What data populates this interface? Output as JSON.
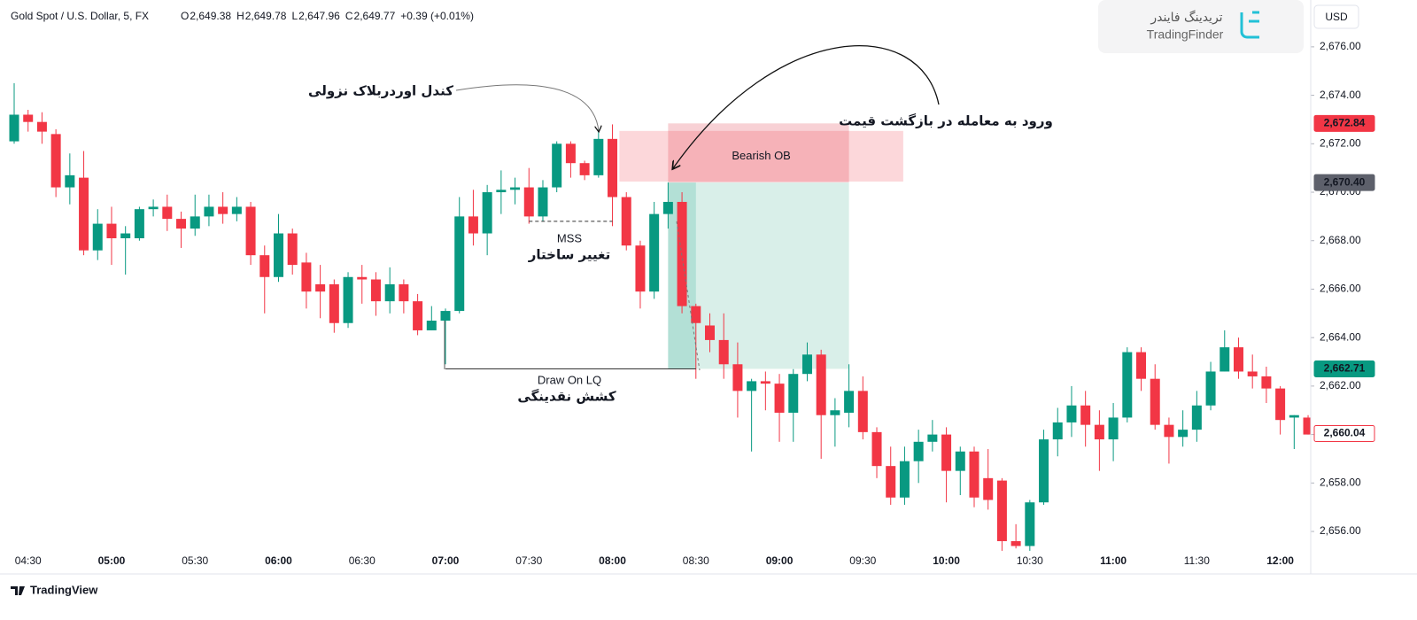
{
  "chart_data": {
    "type": "candlestick",
    "title": "Gold Spot / U.S. Dollar, 5, FX",
    "ohlc_header": [
      {
        "key": "O",
        "value": "2,649.38"
      },
      {
        "key": "H",
        "value": "2,649.78"
      },
      {
        "key": "L",
        "value": "2,647.96"
      },
      {
        "key": "C",
        "value": "2,649.77"
      }
    ],
    "change": "+0.39 (+0.01%)",
    "currency": "USD",
    "up_color": "#089981",
    "down_color": "#f23645",
    "categories": [
      null,
      "04:30",
      null,
      null,
      null,
      null,
      null,
      "05:00",
      null,
      null,
      null,
      null,
      null,
      "05:30",
      null,
      null,
      null,
      null,
      null,
      "06:00",
      null,
      null,
      null,
      null,
      null,
      "06:30",
      null,
      null,
      null,
      null,
      null,
      "07:00",
      null,
      null,
      null,
      null,
      null,
      "07:30",
      null,
      null,
      null,
      null,
      null,
      "08:00",
      null,
      null,
      null,
      null,
      null,
      "08:30",
      null,
      null,
      null,
      null,
      null,
      "09:00",
      null,
      null,
      null,
      null,
      null,
      "09:30",
      null,
      null,
      null,
      null,
      null,
      "10:00",
      null,
      null,
      null,
      null,
      null,
      "10:30",
      null,
      null,
      null,
      null,
      null,
      "11:00",
      null,
      null,
      null,
      null,
      null,
      "11:30",
      null,
      null,
      null,
      null,
      null,
      "12:00",
      null,
      null
    ],
    "open": [
      2672.1,
      2673.2,
      2672.9,
      2672.4,
      2670.2,
      2670.6,
      2667.6,
      2668.7,
      2668.1,
      2668.1,
      2669.3,
      2669.4,
      2668.9,
      2668.5,
      2669.0,
      2669.4,
      2669.1,
      2669.4,
      2667.4,
      2666.5,
      2668.3,
      2667.1,
      2666.2,
      2666.2,
      2664.6,
      2666.5,
      2666.4,
      2665.5,
      2666.2,
      2665.5,
      2664.3,
      2664.7,
      2665.1,
      2669.0,
      2668.3,
      2670.0,
      2670.1,
      2670.2,
      2669.0,
      2670.2,
      2672.0,
      2671.2,
      2670.7,
      2672.2,
      2669.8,
      2667.8,
      2665.9,
      2669.1,
      2669.6,
      2665.3,
      2664.5,
      2663.9,
      2662.9,
      2661.8,
      2662.2,
      2662.1,
      2660.9,
      2662.5,
      2663.3,
      2660.8,
      2660.9,
      2661.8,
      2660.1,
      2658.7,
      2657.4,
      2658.9,
      2659.7,
      2660.0,
      2658.5,
      2659.3,
      2658.2,
      2658.1,
      2655.6,
      2655.4,
      2657.2,
      2659.8,
      2660.5,
      2661.2,
      2660.4,
      2659.8,
      2660.7,
      2663.4,
      2662.3,
      2660.4,
      2659.9,
      2660.2,
      2661.2,
      2662.6,
      2663.6,
      2662.6,
      2662.4,
      2661.9,
      2660.7,
      2660.7
    ],
    "high": [
      2674.5,
      2673.4,
      2673.3,
      2672.6,
      2671.6,
      2671.7,
      2669.3,
      2669.4,
      2668.6,
      2669.4,
      2669.7,
      2669.9,
      2669.2,
      2669.9,
      2669.9,
      2670.0,
      2669.8,
      2669.6,
      2667.8,
      2669.1,
      2668.5,
      2667.5,
      2667.0,
      2666.4,
      2666.7,
      2667.0,
      2666.7,
      2666.9,
      2666.4,
      2665.8,
      2665.3,
      2665.2,
      2669.8,
      2670.1,
      2670.3,
      2670.9,
      2670.6,
      2671.0,
      2670.5,
      2672.1,
      2672.1,
      2671.3,
      2672.6,
      2672.8,
      2670.0,
      2668.0,
      2669.6,
      2670.4,
      2670.0,
      2665.4,
      2665.0,
      2665.0,
      2663.8,
      2662.3,
      2662.6,
      2662.5,
      2662.7,
      2663.8,
      2663.5,
      2661.5,
      2662.9,
      2662.4,
      2660.3,
      2659.5,
      2659.5,
      2660.2,
      2660.6,
      2660.3,
      2659.5,
      2659.5,
      2659.4,
      2658.2,
      2656.3,
      2657.3,
      2660.2,
      2661.1,
      2662.0,
      2661.8,
      2661.0,
      2661.3,
      2663.6,
      2663.6,
      2662.9,
      2660.7,
      2661.0,
      2661.8,
      2663.0,
      2664.3,
      2664.0,
      2663.3,
      2662.8,
      2662.0,
      2660.8,
      2660.8
    ],
    "low": [
      2672.0,
      2672.5,
      2672.0,
      2669.8,
      2669.5,
      2667.4,
      2667.2,
      2667.0,
      2666.6,
      2668.0,
      2669.0,
      2668.4,
      2667.7,
      2668.2,
      2668.6,
      2668.7,
      2668.8,
      2667.0,
      2665.0,
      2666.3,
      2666.6,
      2665.2,
      2664.8,
      2664.2,
      2664.4,
      2665.4,
      2664.9,
      2665.0,
      2665.0,
      2664.1,
      2664.3,
      2662.9,
      2665.0,
      2667.8,
      2667.4,
      2669.1,
      2669.5,
      2668.7,
      2668.8,
      2670.0,
      2670.6,
      2670.5,
      2670.6,
      2668.6,
      2667.6,
      2665.2,
      2665.6,
      2668.5,
      2665.0,
      2662.3,
      2663.4,
      2662.3,
      2660.7,
      2659.3,
      2661.0,
      2659.7,
      2659.7,
      2662.2,
      2659.0,
      2659.5,
      2660.3,
      2659.8,
      2658.2,
      2657.1,
      2657.1,
      2658.0,
      2659.3,
      2657.2,
      2657.5,
      2657.0,
      2656.9,
      2655.2,
      2655.3,
      2655.2,
      2657.1,
      2659.1,
      2659.9,
      2659.5,
      2658.5,
      2658.9,
      2660.5,
      2661.8,
      2660.2,
      2658.8,
      2659.5,
      2659.7,
      2661.0,
      2662.6,
      2662.3,
      2661.9,
      2661.3,
      2660.0,
      2659.4,
      2660.0
    ],
    "close": [
      2673.2,
      2672.9,
      2672.5,
      2670.2,
      2670.7,
      2667.6,
      2668.7,
      2668.1,
      2668.3,
      2669.3,
      2669.4,
      2668.9,
      2668.5,
      2669.0,
      2669.4,
      2669.1,
      2669.4,
      2667.4,
      2666.5,
      2668.3,
      2667.0,
      2665.9,
      2665.9,
      2664.6,
      2666.5,
      2666.4,
      2665.5,
      2666.2,
      2665.5,
      2664.3,
      2664.7,
      2665.1,
      2669.0,
      2668.3,
      2670.0,
      2670.1,
      2670.2,
      2669.0,
      2670.2,
      2672.0,
      2671.2,
      2670.7,
      2672.2,
      2669.8,
      2667.8,
      2665.9,
      2669.1,
      2669.6,
      2665.3,
      2664.6,
      2663.9,
      2662.9,
      2661.8,
      2662.2,
      2662.1,
      2660.9,
      2662.5,
      2663.3,
      2660.8,
      2661.0,
      2661.8,
      2660.1,
      2658.7,
      2657.4,
      2658.9,
      2659.7,
      2660.0,
      2658.5,
      2659.3,
      2657.4,
      2657.3,
      2655.6,
      2655.4,
      2657.2,
      2659.8,
      2660.5,
      2661.2,
      2660.4,
      2659.8,
      2660.7,
      2663.4,
      2662.3,
      2660.4,
      2659.9,
      2660.2,
      2661.2,
      2662.6,
      2663.6,
      2662.6,
      2662.4,
      2661.9,
      2660.6,
      2660.8,
      2660.0
    ],
    "ylim": [
      2655.27,
      2677.75
    ],
    "yticks": [
      {
        "value": 2656,
        "label": "2,656.00"
      },
      {
        "value": 2658,
        "label": "2,658.00"
      },
      {
        "value": 2660,
        "label": "2,660.00"
      },
      {
        "value": 2662,
        "label": "2,662.00"
      },
      {
        "value": 2664,
        "label": "2,664.00"
      },
      {
        "value": 2666,
        "label": "2,666.00"
      },
      {
        "value": 2668,
        "label": "2,668.00"
      },
      {
        "value": 2670,
        "label": "2,670.00"
      },
      {
        "value": 2672,
        "label": "2,672.00"
      },
      {
        "value": 2674,
        "label": "2,674.00"
      },
      {
        "value": 2676,
        "label": "2,676.00"
      }
    ],
    "price_tags": [
      {
        "value": 2672.84,
        "label": "2,672.84",
        "color": "#f23645",
        "outline": false
      },
      {
        "value": 2670.4,
        "label": "2,670.40",
        "color": "#5d606b",
        "outline": false
      },
      {
        "value": 2662.71,
        "label": "2,662.71",
        "color": "#089981",
        "outline": false
      },
      {
        "value": 2660.04,
        "label": "2,660.04",
        "color": "#f23645",
        "outline": true
      }
    ],
    "zones": [
      {
        "x": [
          47,
          60
        ],
        "y": [
          2670.4,
          2672.84
        ],
        "color": "#f7c9ce"
      },
      {
        "x": [
          47,
          60
        ],
        "y": [
          2662.71,
          2670.4
        ],
        "color": "#d2ece5"
      },
      {
        "label": "Bearish OB",
        "x": [
          43.5,
          63.9
        ],
        "y": [
          2670.44,
          2672.53
        ],
        "color": "#f23645"
      }
    ],
    "levels": [
      {
        "value": 2668.8,
        "x": [
          37,
          43
        ],
        "dash": true
      },
      {
        "value": 2662.71,
        "x": [
          31,
          49
        ],
        "dash": false
      }
    ],
    "annotations": [
      {
        "text": "کندل اوردربلاک نزولی"
      },
      {
        "text": "ورود به معامله در بازگشت قیمت"
      },
      {
        "text": "MSS"
      },
      {
        "text": "تغییر ساختار"
      },
      {
        "text": "Draw On LQ"
      },
      {
        "text": "کشش نقدینگی"
      }
    ],
    "watermark": {
      "fa": "تریدینگ فایندر",
      "en": "TradingFinder"
    },
    "footer": "TradingView"
  }
}
